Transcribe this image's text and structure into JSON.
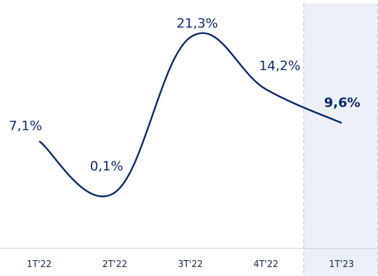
{
  "chart_data": {
    "type": "line",
    "categories": [
      "1T'22",
      "2T'22",
      "3T'22",
      "4T'22",
      "1T'23"
    ],
    "values": [
      7.1,
      0.1,
      21.3,
      14.2,
      9.6
    ],
    "value_labels": [
      "7,1%",
      "0,1%",
      "21,3%",
      "14,2%",
      "9,6%"
    ],
    "color": "#0b2a6b",
    "highlighted_category": 4
  }
}
